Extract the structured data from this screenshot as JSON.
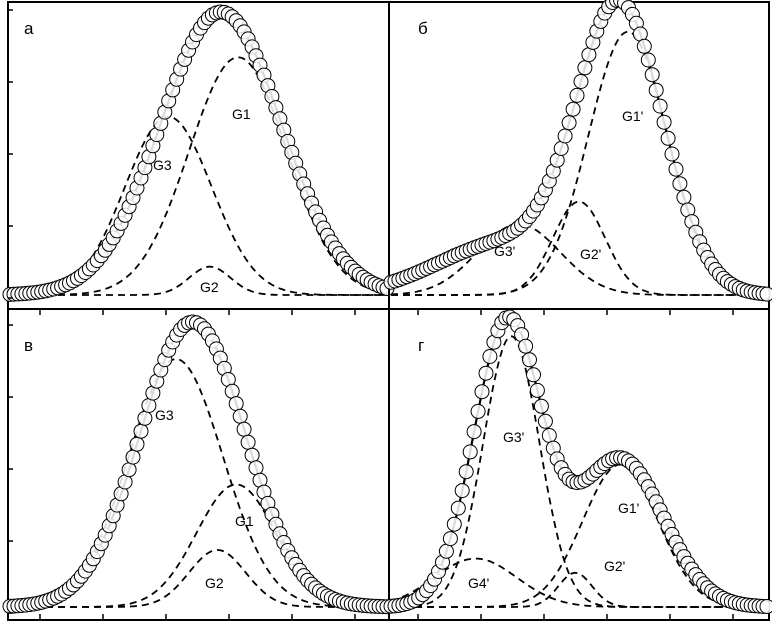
{
  "chart_data": [
    {
      "type": "line",
      "panel_label": "а",
      "x": [
        0,
        10
      ],
      "ylim": [
        0,
        1.05
      ],
      "fit_peaks": [
        {
          "center": 5.6,
          "width": 1.6,
          "height": 1.0
        }
      ],
      "series": [
        {
          "label": "G1",
          "center": 6.05,
          "width": 1.3,
          "height": 0.84
        },
        {
          "label": "G2",
          "center": 5.3,
          "width": 0.55,
          "height": 0.1
        },
        {
          "label": "G3",
          "center": 4.2,
          "width": 1.15,
          "height": 0.63
        }
      ]
    },
    {
      "type": "line",
      "panel_label": "б",
      "x": [
        0,
        10
      ],
      "ylim": [
        0,
        1.05
      ],
      "fit_peaks": [
        {
          "center": 6.1,
          "width": 1.15,
          "height": 1.0
        },
        {
          "center": 3.0,
          "width": 1.8,
          "height": 0.18
        }
      ],
      "series": [
        {
          "label": "G1'",
          "center": 6.3,
          "width": 1.05,
          "height": 0.93
        },
        {
          "label": "G2'",
          "center": 5.0,
          "width": 0.7,
          "height": 0.33
        },
        {
          "label": "G3'",
          "center": 3.4,
          "width": 1.1,
          "height": 0.25
        }
      ]
    },
    {
      "type": "line",
      "panel_label": "в",
      "x": [
        0,
        10
      ],
      "ylim": [
        0,
        1.05
      ],
      "fit_peaks": [
        {
          "center": 4.85,
          "width": 1.4,
          "height": 1.0
        }
      ],
      "series": [
        {
          "label": "G3",
          "center": 4.4,
          "width": 1.25,
          "height": 0.87
        },
        {
          "label": "G1",
          "center": 6.0,
          "width": 1.05,
          "height": 0.43
        },
        {
          "label": "G2",
          "center": 5.5,
          "width": 0.75,
          "height": 0.2
        }
      ]
    },
    {
      "type": "line",
      "panel_label": "г",
      "x": [
        0,
        10
      ],
      "ylim": [
        0,
        1.05
      ],
      "fit_peaks": [
        {
          "center": 3.1,
          "width": 0.9,
          "height": 1.0
        },
        {
          "center": 6.1,
          "width": 1.15,
          "height": 0.52
        }
      ],
      "series": [
        {
          "label": "G3'",
          "center": 3.2,
          "width": 0.75,
          "height": 0.95
        },
        {
          "label": "G1'",
          "center": 6.1,
          "width": 1.0,
          "height": 0.5
        },
        {
          "label": "G4'",
          "center": 2.25,
          "width": 1.1,
          "height": 0.17
        },
        {
          "label": "G2'",
          "center": 4.9,
          "width": 0.45,
          "height": 0.12
        }
      ]
    }
  ]
}
